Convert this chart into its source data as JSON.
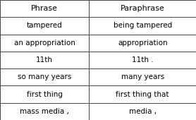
{
  "col_headers": [
    "Phrase",
    "Paraphrase"
  ],
  "rows": [
    [
      "tampered",
      "being tampered"
    ],
    [
      "an appropriation",
      "appropriation"
    ],
    [
      "11th",
      "11th ."
    ],
    [
      "so many years",
      "many years"
    ],
    [
      "first thing",
      "first thing that"
    ],
    [
      "mass media ,",
      "media ,"
    ]
  ],
  "bg_color": "#ffffff",
  "line_color": "#444444",
  "text_color": "#000000",
  "font_size": 7.5,
  "header_font_size": 8.0,
  "col_split": 0.455,
  "fig_width": 2.78,
  "fig_height": 1.7,
  "dpi": 100
}
